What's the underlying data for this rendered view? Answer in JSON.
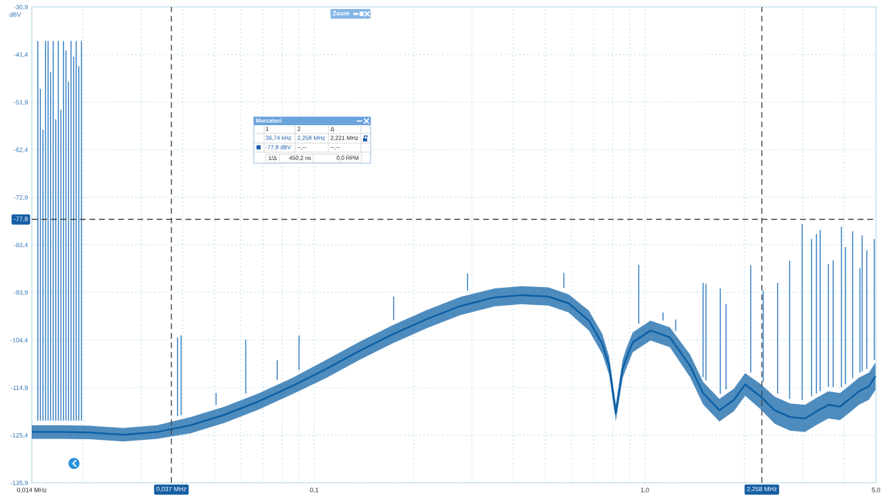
{
  "chart_data": {
    "type": "line",
    "ylabel": "dBV",
    "xlim": [
      0.014,
      5.0
    ],
    "ylim": [
      -135.9,
      -30.9
    ],
    "log": "x",
    "grid": true,
    "xticks": [
      {
        "value": 0.014,
        "label": "0,014 MHz"
      },
      {
        "value": 0.02,
        "label": null
      },
      {
        "value": 0.03,
        "label": null
      },
      {
        "value": 0.04,
        "label": null
      },
      {
        "value": 0.05,
        "label": null
      },
      {
        "value": 0.06,
        "label": null
      },
      {
        "value": 0.07,
        "label": null
      },
      {
        "value": 0.08,
        "label": null
      },
      {
        "value": 0.09,
        "label": null
      },
      {
        "value": 0.1,
        "label": "0,1"
      },
      {
        "value": 0.2,
        "label": null
      },
      {
        "value": 0.3,
        "label": null
      },
      {
        "value": 0.4,
        "label": null
      },
      {
        "value": 0.5,
        "label": null
      },
      {
        "value": 0.6,
        "label": null
      },
      {
        "value": 0.7,
        "label": null
      },
      {
        "value": 0.8,
        "label": null
      },
      {
        "value": 0.9,
        "label": null
      },
      {
        "value": 1.0,
        "label": "1,0"
      },
      {
        "value": 2.0,
        "label": null
      },
      {
        "value": 3.0,
        "label": null
      },
      {
        "value": 4.0,
        "label": null
      },
      {
        "value": 5.0,
        "label": "5,0"
      }
    ],
    "yticks": [
      {
        "value": -30.9,
        "label": "-30,9"
      },
      {
        "value": -41.4,
        "label": "-41,4"
      },
      {
        "value": -51.9,
        "label": "-51,9"
      },
      {
        "value": -62.4,
        "label": "-62,4"
      },
      {
        "value": -72.9,
        "label": "-72,9"
      },
      {
        "value": -83.4,
        "label": "-83,4"
      },
      {
        "value": -93.9,
        "label": "-93,9"
      },
      {
        "value": -104.4,
        "label": "-104,4"
      },
      {
        "value": -114.9,
        "label": "-114,9"
      },
      {
        "value": -125.4,
        "label": "-125,4"
      },
      {
        "value": -135.9,
        "label": "-135,9"
      }
    ],
    "ref_lines": [
      {
        "axis": "x",
        "value": 0.037,
        "label": "0,037 MHz",
        "color": "#404040",
        "line_style": "dashed"
      },
      {
        "axis": "x",
        "value": 2.258,
        "label": "2,258 MHz",
        "color": "#404040",
        "line_style": "dashed"
      },
      {
        "axis": "y",
        "value": -77.8,
        "label": "-77,8",
        "color": "#404040",
        "line_style": "dashed"
      }
    ],
    "annotations": [
      "Zoom",
      "Marcatori",
      "1",
      "2",
      "Δ",
      "36,74 kHz",
      "2,258 MHz",
      "2,221 MHz",
      "-77,8 dBV",
      "--,--",
      "--,--",
      "1/Δ",
      "450,2 ns",
      "0,0 RPM"
    ],
    "series": [
      {
        "color": "#2a78c0",
        "x": [
          0.0146,
          0.0146,
          null,
          0.01486,
          0.01486,
          null,
          0.01513,
          0.01513,
          null,
          0.0154,
          0.0154,
          null,
          0.01568,
          0.01568,
          null,
          0.01596,
          0.01596,
          null,
          0.01625,
          0.01625,
          null,
          0.01654,
          0.01654,
          null,
          0.01684,
          0.01684,
          null,
          0.01714,
          0.01714,
          null,
          0.01745,
          0.01745,
          null,
          0.01776,
          0.01776,
          null,
          0.01808,
          0.01808,
          null,
          0.0184,
          0.0184,
          null,
          0.01874,
          0.01874,
          null,
          0.01907,
          0.01907,
          null,
          0.01942,
          0.01942,
          null,
          0.01977,
          0.01977,
          null
        ],
        "values": [
          -122.2,
          -38.4,
          null,
          -122.2,
          -49.0,
          null,
          -122.2,
          -58.0,
          null,
          -122.2,
          -38.4,
          null,
          -122.2,
          -38.4,
          null,
          -122.2,
          -45.3,
          null,
          -122.2,
          -38.4,
          null,
          -122.2,
          -55.7,
          null,
          -122.2,
          -38.4,
          null,
          -122.2,
          -53.6,
          null,
          -122.2,
          -38.4,
          null,
          -122.2,
          -40.5,
          null,
          -122.2,
          -47.4,
          null,
          -122.2,
          -38.4,
          null,
          -122.2,
          -41.9,
          null,
          -122.2,
          -38.4,
          null,
          -122.2,
          -44.0,
          null,
          -122.2,
          -38.4,
          null
        ]
      },
      {
        "color": "#2a78c0",
        "x": [
          0.0386,
          0.0386,
          null,
          0.0396,
          0.0396,
          null,
          0.0505,
          0.0505,
          null,
          0.0621,
          0.0621,
          null,
          0.0773,
          0.0773,
          null,
          0.09,
          0.09,
          null,
          0.174,
          0.174,
          null,
          0.291,
          0.291,
          null,
          0.569,
          0.569,
          null,
          0.958,
          0.958,
          null,
          1.135,
          1.135,
          null,
          1.24,
          1.24,
          null,
          1.5,
          1.5,
          null,
          1.53,
          1.53,
          null,
          1.69,
          1.69,
          null,
          1.76,
          1.76,
          null,
          2.09,
          2.09,
          null,
          2.28,
          2.28,
          null,
          2.52,
          2.52,
          null,
          2.74,
          2.74,
          null,
          2.99,
          2.99,
          null,
          3.19,
          3.19,
          null,
          3.3,
          3.3,
          null,
          3.39,
          3.39,
          null,
          3.59,
          3.59,
          null,
          3.71,
          3.71,
          null,
          3.93,
          3.93,
          null,
          4.04,
          4.04,
          null,
          4.25,
          4.25,
          null,
          4.47,
          4.47,
          null,
          4.54,
          4.54,
          null,
          4.69,
          4.69,
          null,
          4.94,
          4.94,
          null
        ],
        "values": [
          -121.2,
          -103.8,
          null,
          -121.0,
          -103.4,
          null,
          -118.7,
          -116.1,
          null,
          -116.2,
          -104.3,
          null,
          -113.2,
          -108.9,
          null,
          -111.0,
          -103.4,
          null,
          -100.0,
          -94.8,
          null,
          -93.5,
          -89.7,
          null,
          -92.9,
          -89.6,
          null,
          -100.8,
          -87.8,
          null,
          -100.1,
          -98.3,
          null,
          -102.4,
          -99.9,
          null,
          -112.6,
          -91.8,
          null,
          -113.3,
          -92.0,
          null,
          -116.3,
          -93.0,
          null,
          -115.3,
          -96.5,
          null,
          -111.6,
          -87.9,
          null,
          -113.6,
          -93.5,
          null,
          -116.2,
          -91.8,
          null,
          -117.4,
          -86.9,
          null,
          -117.6,
          -78.8,
          null,
          -116.8,
          -82.1,
          null,
          -116.2,
          -81.0,
          null,
          -115.7,
          -80.1,
          null,
          -114.7,
          -87.6,
          null,
          -114.8,
          -86.8,
          null,
          -114.8,
          -79.4,
          null,
          -114.2,
          -83.9,
          null,
          -112.8,
          -80.4,
          null,
          -111.6,
          -88.5,
          null,
          -111.3,
          -81.3,
          null,
          -110.8,
          -84.6,
          null,
          -108.8,
          -82.1,
          null
        ]
      },
      {
        "color": "#0b5fa5",
        "x": [
          0.014,
          0.0173,
          0.0209,
          0.0265,
          0.0335,
          0.0423,
          0.0535,
          0.0677,
          0.0856,
          0.108,
          0.137,
          0.173,
          0.219,
          0.277,
          0.351,
          0.423,
          0.511,
          0.588,
          0.677,
          0.744,
          0.78,
          0.817,
          0.856,
          0.877,
          0.919,
          1.04,
          1.19,
          1.37,
          1.5,
          1.68,
          1.86,
          2.01,
          2.24,
          2.47,
          2.75,
          3.05,
          3.35,
          3.59,
          3.89,
          4.13,
          4.44,
          4.76,
          4.98
        ],
        "values": [
          -124.7,
          -124.7,
          -124.8,
          -125.3,
          -124.7,
          -123.2,
          -120.9,
          -118.0,
          -114.6,
          -110.9,
          -106.8,
          -103.1,
          -99.8,
          -96.9,
          -95.0,
          -94.5,
          -94.8,
          -96.3,
          -100.1,
          -105.3,
          -110.1,
          -120.5,
          -110.9,
          -108.6,
          -104.9,
          -102.3,
          -103.8,
          -110.1,
          -116.1,
          -119.9,
          -117.6,
          -114.2,
          -116.9,
          -119.9,
          -121.4,
          -121.7,
          -119.9,
          -118.7,
          -119.1,
          -117.6,
          -115.7,
          -114.6,
          -112.4
        ],
        "lower": [
          -126.2,
          -126.2,
          -126.3,
          -126.8,
          -126.2,
          -125.0,
          -122.7,
          -119.8,
          -116.4,
          -112.9,
          -108.8,
          -105.1,
          -101.8,
          -98.9,
          -97.0,
          -96.5,
          -96.8,
          -98.3,
          -102.3,
          -107.5,
          -112.1,
          -122.3,
          -112.9,
          -110.8,
          -107.1,
          -104.5,
          -106.0,
          -112.6,
          -118.6,
          -122.4,
          -120.1,
          -116.7,
          -119.7,
          -122.9,
          -124.4,
          -124.7,
          -122.9,
          -121.7,
          -122.1,
          -120.6,
          -118.7,
          -117.6,
          -115.4
        ],
        "upper": [
          -123.2,
          -123.2,
          -123.3,
          -123.8,
          -123.2,
          -121.4,
          -119.1,
          -116.2,
          -112.8,
          -108.9,
          -104.8,
          -101.1,
          -97.8,
          -94.9,
          -93.0,
          -92.5,
          -92.8,
          -94.3,
          -97.9,
          -103.1,
          -108.1,
          -118.7,
          -108.9,
          -106.4,
          -102.7,
          -100.1,
          -101.6,
          -107.6,
          -113.6,
          -117.4,
          -115.1,
          -111.7,
          -114.1,
          -116.9,
          -118.4,
          -118.7,
          -116.9,
          -115.7,
          -116.1,
          -114.6,
          -112.7,
          -111.6,
          -109.4
        ]
      }
    ]
  }
}
